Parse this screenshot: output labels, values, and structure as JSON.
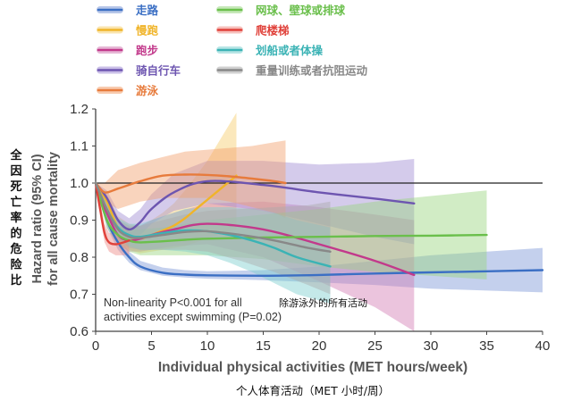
{
  "chart_data": {
    "type": "line",
    "xlabel": "Individual physical activities (MET hours/week)",
    "xlabel_zh": "个人体育活动（MET 小时/周）",
    "ylabel_en_line1": "Hazard ratio (95% CI)",
    "ylabel_en_line2": "for all cause mortality",
    "ylabel_zh": [
      "全",
      "因",
      "死",
      "亡",
      "率",
      "的",
      "危",
      "险",
      "比"
    ],
    "xlim": [
      0,
      40
    ],
    "ylim": [
      0.6,
      1.2
    ],
    "x_ticks": [
      "0",
      "5",
      "10",
      "15",
      "20",
      "25",
      "30",
      "35",
      "40"
    ],
    "y_ticks": [
      "0.6",
      "0.7",
      "0.8",
      "0.9",
      "1.0",
      "1.1",
      "1.2"
    ],
    "reference_line": 1.0,
    "annotation_line1": "Non-linearity P<0.001 for all",
    "annotation_line2": "activities except swimming (P=0.02)",
    "annotation_zh": "除游泳外的所有活动",
    "series": [
      {
        "name": "走路",
        "color": "#3b6fc4",
        "band_color": "#7c97d6",
        "x": [
          0,
          1,
          2,
          3,
          4,
          6,
          8,
          10,
          15,
          20,
          25,
          30,
          35,
          40
        ],
        "y": [
          1.0,
          0.9,
          0.84,
          0.8,
          0.775,
          0.758,
          0.753,
          0.751,
          0.75,
          0.752,
          0.756,
          0.759,
          0.762,
          0.765
        ],
        "ci_low": [
          1.0,
          0.88,
          0.82,
          0.785,
          0.765,
          0.75,
          0.745,
          0.742,
          0.738,
          0.732,
          0.725,
          0.715,
          0.71,
          0.705
        ],
        "ci_high": [
          1.0,
          0.92,
          0.86,
          0.815,
          0.79,
          0.772,
          0.765,
          0.762,
          0.765,
          0.775,
          0.79,
          0.805,
          0.815,
          0.825
        ]
      },
      {
        "name": "慢跑",
        "color": "#f0b429",
        "band_color": "#f6cd6a",
        "x": [
          0,
          1,
          2,
          3,
          4,
          5,
          6,
          7,
          8,
          9,
          10,
          11,
          12,
          12.6
        ],
        "y": [
          1.0,
          0.95,
          0.88,
          0.855,
          0.85,
          0.86,
          0.872,
          0.885,
          0.905,
          0.93,
          0.955,
          0.98,
          1.005,
          1.02
        ],
        "ci_low": [
          1.0,
          0.93,
          0.85,
          0.82,
          0.81,
          0.815,
          0.82,
          0.825,
          0.83,
          0.84,
          0.85,
          0.86,
          0.87,
          0.875
        ],
        "ci_high": [
          1.0,
          0.97,
          0.91,
          0.89,
          0.885,
          0.9,
          0.92,
          0.945,
          0.98,
          1.02,
          1.06,
          1.11,
          1.16,
          1.19
        ]
      },
      {
        "name": "跑步",
        "color": "#c2398b",
        "band_color": "#d27cb3",
        "x": [
          0,
          1,
          2,
          3,
          4,
          5,
          7,
          10,
          15,
          20,
          25,
          28.5
        ],
        "y": [
          1.0,
          0.92,
          0.86,
          0.845,
          0.85,
          0.86,
          0.875,
          0.89,
          0.875,
          0.835,
          0.79,
          0.752
        ],
        "ci_low": [
          1.0,
          0.9,
          0.835,
          0.815,
          0.815,
          0.82,
          0.83,
          0.835,
          0.8,
          0.735,
          0.665,
          0.6
        ],
        "ci_high": [
          1.0,
          0.94,
          0.885,
          0.875,
          0.885,
          0.9,
          0.92,
          0.945,
          0.95,
          0.935,
          0.915,
          0.9
        ]
      },
      {
        "name": "骑自行车",
        "color": "#6d55b0",
        "band_color": "#9f8bd3",
        "x": [
          0,
          1,
          2,
          3,
          4,
          5,
          7,
          10,
          15,
          20,
          25,
          28.5
        ],
        "y": [
          1.0,
          0.96,
          0.9,
          0.875,
          0.895,
          0.93,
          0.975,
          1.005,
          0.995,
          0.975,
          0.958,
          0.945
        ],
        "ci_low": [
          1.0,
          0.94,
          0.875,
          0.845,
          0.86,
          0.89,
          0.925,
          0.945,
          0.925,
          0.89,
          0.855,
          0.835
        ],
        "ci_high": [
          1.0,
          0.98,
          0.925,
          0.905,
          0.93,
          0.97,
          1.025,
          1.06,
          1.06,
          1.05,
          1.055,
          1.065
        ]
      },
      {
        "name": "游泳",
        "color": "#e77b3c",
        "band_color": "#f2a06d",
        "x": [
          0,
          0.8,
          2,
          4,
          6,
          8,
          10,
          12,
          14,
          16,
          17
        ],
        "y": [
          1.0,
          0.975,
          0.985,
          1.005,
          1.02,
          1.023,
          1.022,
          1.018,
          1.012,
          1.005,
          1.0
        ],
        "ci_low": [
          1.0,
          0.95,
          0.93,
          0.95,
          0.96,
          0.96,
          0.96,
          0.95,
          0.935,
          0.92,
          0.905
        ],
        "ci_high": [
          1.0,
          1.0,
          1.035,
          1.055,
          1.07,
          1.085,
          1.09,
          1.095,
          1.1,
          1.11,
          1.115
        ]
      },
      {
        "name": "网球、壁球或排球",
        "color": "#6abf4b",
        "band_color": "#98d57f",
        "x": [
          0,
          1,
          2,
          3,
          4,
          6,
          8,
          10,
          15,
          20,
          25,
          30,
          35
        ],
        "y": [
          1.0,
          0.9,
          0.86,
          0.845,
          0.84,
          0.843,
          0.847,
          0.85,
          0.853,
          0.855,
          0.857,
          0.858,
          0.86
        ],
        "ci_low": [
          1.0,
          0.88,
          0.835,
          0.815,
          0.805,
          0.805,
          0.805,
          0.805,
          0.795,
          0.775,
          0.76,
          0.75,
          0.74
        ],
        "ci_high": [
          1.0,
          0.92,
          0.885,
          0.875,
          0.875,
          0.88,
          0.89,
          0.9,
          0.915,
          0.93,
          0.95,
          0.965,
          0.98
        ]
      },
      {
        "name": "爬楼梯",
        "color": "#e0413a",
        "band_color": "#ee8a84",
        "x": [
          0,
          0.4,
          0.8,
          1.2,
          1.8,
          2.5,
          3
        ],
        "y": [
          1.0,
          0.93,
          0.865,
          0.84,
          0.835,
          0.84,
          0.845
        ],
        "ci_low": [
          1.0,
          0.91,
          0.84,
          0.815,
          0.805,
          0.805,
          0.805
        ],
        "ci_high": [
          1.0,
          0.95,
          0.89,
          0.865,
          0.865,
          0.875,
          0.885
        ]
      },
      {
        "name": "划船或者体操",
        "color": "#3bb3b5",
        "band_color": "#7dcfcf",
        "x": [
          0,
          1,
          2,
          3,
          4,
          6,
          8,
          10,
          12,
          14,
          16,
          18,
          21
        ],
        "y": [
          1.0,
          0.93,
          0.88,
          0.86,
          0.855,
          0.865,
          0.872,
          0.87,
          0.86,
          0.845,
          0.825,
          0.8,
          0.775
        ],
        "ci_low": [
          1.0,
          0.91,
          0.855,
          0.83,
          0.82,
          0.82,
          0.815,
          0.805,
          0.785,
          0.76,
          0.73,
          0.7,
          0.675
        ],
        "ci_high": [
          1.0,
          0.95,
          0.905,
          0.89,
          0.89,
          0.91,
          0.93,
          0.935,
          0.935,
          0.93,
          0.92,
          0.9,
          0.88
        ]
      },
      {
        "name": "重量训练或者抗阻运动",
        "color": "#888888",
        "band_color": "#aaaaaa",
        "x": [
          0,
          1,
          2,
          3,
          4,
          6,
          8,
          10,
          13,
          16,
          19,
          21
        ],
        "y": [
          1.0,
          0.93,
          0.875,
          0.855,
          0.852,
          0.86,
          0.868,
          0.87,
          0.86,
          0.845,
          0.825,
          0.815
        ],
        "ci_low": [
          1.0,
          0.91,
          0.85,
          0.825,
          0.82,
          0.82,
          0.82,
          0.815,
          0.79,
          0.76,
          0.725,
          0.7
        ],
        "ci_high": [
          1.0,
          0.95,
          0.9,
          0.885,
          0.885,
          0.9,
          0.915,
          0.925,
          0.93,
          0.935,
          0.94,
          0.95
        ]
      }
    ]
  }
}
